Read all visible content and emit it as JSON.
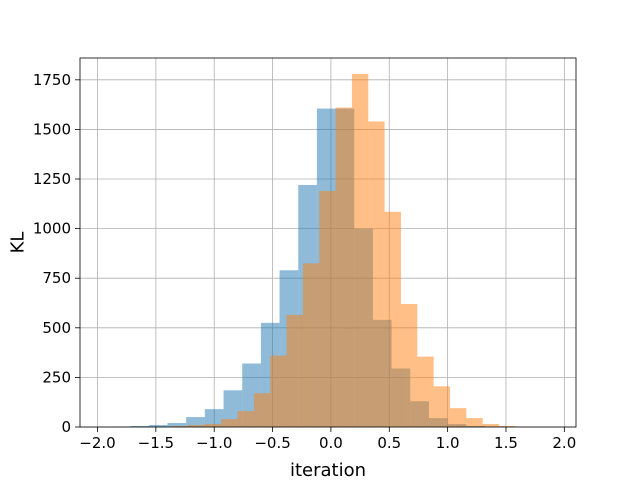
{
  "chart_data": {
    "type": "histogram",
    "xlabel": "iteration",
    "ylabel": "KL",
    "xlim": [
      -2.15,
      2.1
    ],
    "ylim": [
      0,
      1860
    ],
    "x_ticks": [
      -2.0,
      -1.5,
      -1.0,
      -0.5,
      0.0,
      0.5,
      1.0,
      1.5,
      2.0
    ],
    "x_tick_labels": [
      "−2.0",
      "−1.5",
      "−1.0",
      "−0.5",
      "0.0",
      "0.5",
      "1.0",
      "1.5",
      "2.0"
    ],
    "y_ticks": [
      0,
      250,
      500,
      750,
      1000,
      1250,
      1500,
      1750
    ],
    "y_tick_labels": [
      "0",
      "250",
      "500",
      "750",
      "1000",
      "1250",
      "1500",
      "1750"
    ],
    "grid": true,
    "bar_opacity": 0.5,
    "series": [
      {
        "color": "#1f77b4",
        "bins": [
          [
            -1.88,
            -1.72,
            2
          ],
          [
            -1.72,
            -1.56,
            5
          ],
          [
            -1.56,
            -1.4,
            10
          ],
          [
            -1.4,
            -1.24,
            20
          ],
          [
            -1.24,
            -1.08,
            50
          ],
          [
            -1.08,
            -0.92,
            90
          ],
          [
            -0.92,
            -0.76,
            185
          ],
          [
            -0.76,
            -0.6,
            320
          ],
          [
            -0.6,
            -0.44,
            525
          ],
          [
            -0.44,
            -0.28,
            790
          ],
          [
            -0.28,
            -0.12,
            1220
          ],
          [
            -0.12,
            0.04,
            1605
          ],
          [
            0.04,
            0.2,
            1605
          ],
          [
            0.2,
            0.36,
            1000
          ],
          [
            0.36,
            0.52,
            540
          ],
          [
            0.52,
            0.68,
            295
          ],
          [
            0.68,
            0.84,
            130
          ],
          [
            0.84,
            1.0,
            45
          ],
          [
            1.0,
            1.16,
            15
          ],
          [
            1.16,
            1.32,
            5
          ],
          [
            1.32,
            1.48,
            2
          ]
        ]
      },
      {
        "color": "#ff7f0e",
        "bins": [
          [
            -1.36,
            -1.22,
            5
          ],
          [
            -1.22,
            -1.08,
            10
          ],
          [
            -1.08,
            -0.94,
            15
          ],
          [
            -0.94,
            -0.8,
            40
          ],
          [
            -0.8,
            -0.66,
            80
          ],
          [
            -0.66,
            -0.52,
            170
          ],
          [
            -0.52,
            -0.38,
            360
          ],
          [
            -0.38,
            -0.24,
            565
          ],
          [
            -0.24,
            -0.1,
            825
          ],
          [
            -0.1,
            0.04,
            1190
          ],
          [
            0.04,
            0.18,
            1610
          ],
          [
            0.18,
            0.32,
            1780
          ],
          [
            0.32,
            0.46,
            1540
          ],
          [
            0.46,
            0.6,
            1085
          ],
          [
            0.6,
            0.74,
            620
          ],
          [
            0.74,
            0.88,
            355
          ],
          [
            0.88,
            1.02,
            205
          ],
          [
            1.02,
            1.16,
            95
          ],
          [
            1.16,
            1.3,
            45
          ],
          [
            1.3,
            1.44,
            15
          ],
          [
            1.44,
            1.58,
            5
          ],
          [
            1.58,
            1.72,
            2
          ]
        ]
      }
    ]
  }
}
